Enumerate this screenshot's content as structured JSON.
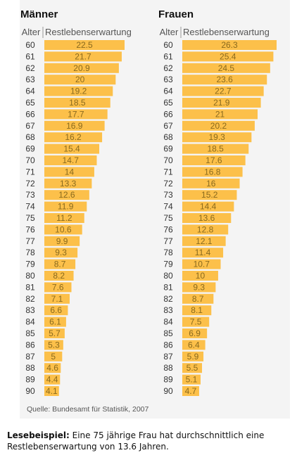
{
  "chart_data": [
    {
      "type": "bar",
      "title": "Männer",
      "age_header": "Alter",
      "value_header": "Restlebenserwartung",
      "categories": [
        "60",
        "61",
        "62",
        "63",
        "64",
        "65",
        "66",
        "67",
        "68",
        "69",
        "70",
        "71",
        "72",
        "73",
        "74",
        "75",
        "76",
        "77",
        "78",
        "79",
        "80",
        "81",
        "82",
        "83",
        "84",
        "85",
        "86",
        "87",
        "88",
        "89",
        "90"
      ],
      "values": [
        22.5,
        21.7,
        20.9,
        20,
        19.2,
        18.5,
        17.7,
        16.9,
        16.2,
        15.4,
        14.7,
        14,
        13.3,
        12.6,
        11.9,
        11.2,
        10.6,
        9.9,
        9.3,
        8.7,
        8.2,
        7.6,
        7.1,
        6.6,
        6.1,
        5.7,
        5.3,
        5,
        4.6,
        4.4,
        4.1
      ],
      "labels": [
        "22.5",
        "21.7",
        "20.9",
        "20",
        "19.2",
        "18.5",
        "17.7",
        "16.9",
        "16.2",
        "15.4",
        "14.7",
        "14",
        "13.3",
        "12.6",
        "11.9",
        "11.2",
        "10.6",
        "9.9",
        "9.3",
        "8.7",
        "8.2",
        "7.6",
        "7.1",
        "6.6",
        "6.1",
        "5.7",
        "5.3",
        "5",
        "4.6",
        "4.4",
        "4.1"
      ],
      "bar_color": "#fcc04a"
    },
    {
      "type": "bar",
      "title": "Frauen",
      "age_header": "Alter",
      "value_header": "Restlebenserwartung",
      "categories": [
        "60",
        "61",
        "62",
        "63",
        "64",
        "65",
        "66",
        "67",
        "68",
        "69",
        "70",
        "71",
        "72",
        "73",
        "74",
        "75",
        "76",
        "77",
        "78",
        "79",
        "80",
        "81",
        "82",
        "83",
        "84",
        "85",
        "86",
        "87",
        "88",
        "89",
        "90"
      ],
      "values": [
        26.3,
        25.4,
        24.5,
        23.6,
        22.7,
        21.9,
        21,
        20.2,
        19.3,
        18.5,
        17.6,
        16.8,
        16,
        15.2,
        14.4,
        13.6,
        12.8,
        12.1,
        11.4,
        10.7,
        10,
        9.3,
        8.7,
        8.1,
        7.5,
        6.9,
        6.4,
        5.9,
        5.5,
        5.1,
        4.7
      ],
      "labels": [
        "26.3",
        "25.4",
        "24.5",
        "23.6",
        "22.7",
        "21.9",
        "21",
        "20.2",
        "19.3",
        "18.5",
        "17.6",
        "16.8",
        "16",
        "15.2",
        "14.4",
        "13.6",
        "12.8",
        "12.1",
        "11.4",
        "10.7",
        "10",
        "9.3",
        "8.7",
        "8.1",
        "7.5",
        "6.9",
        "6.4",
        "5.9",
        "5.5",
        "5.1",
        "4.7"
      ],
      "bar_color": "#fcc04a"
    }
  ],
  "source": "Quelle: Bundesamt für Statistik, 2007",
  "caption": {
    "label": "Lesebeispiel:",
    "text": "Eine 75 jährige Frau hat durchschnittlich eine Restlebenserwartung von 13.6 Jahren."
  },
  "colors": {
    "bar": "#fcc04a",
    "background": "#f4f4f4",
    "label_text": "#8a6a1e"
  }
}
